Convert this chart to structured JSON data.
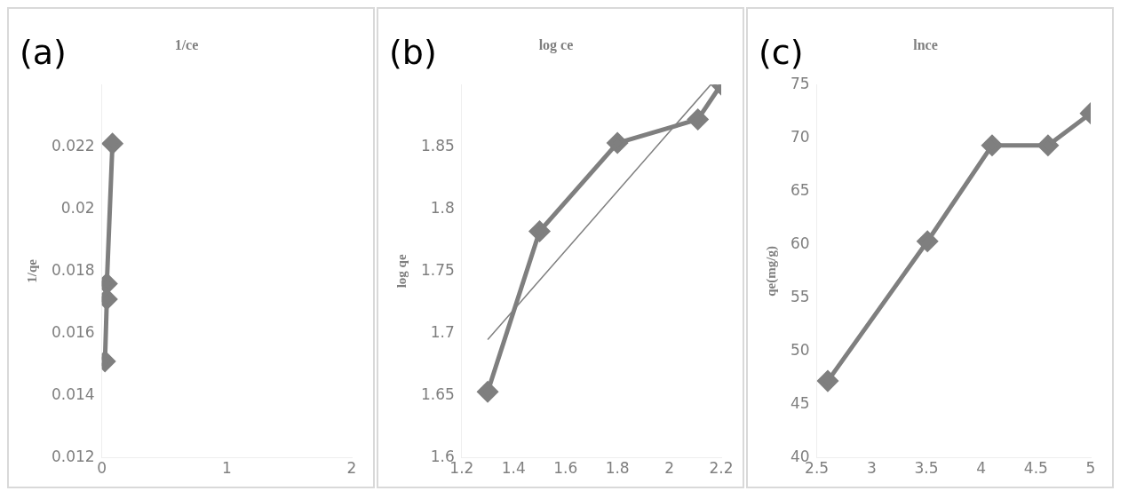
{
  "chart_data": [
    {
      "type": "line",
      "title": "1/ce",
      "ylabel": "1/qe",
      "annotations": [
        "(a)"
      ],
      "x": [
        0.025,
        0.04,
        0.04,
        0.085
      ],
      "series": [
        {
          "color": "#7f7f7f",
          "values": [
            0.0151,
            0.0171,
            0.0176,
            0.0221
          ]
        }
      ],
      "xlim": [
        0,
        2
      ],
      "xticks": [
        0,
        1,
        2
      ],
      "ylim": [
        0.012,
        0.024
      ],
      "yticks": [
        0.012,
        0.014,
        0.016,
        0.018,
        0.02,
        0.022
      ],
      "grid": false,
      "legend": false,
      "marker": "diamond"
    },
    {
      "type": "line",
      "title": "log ce",
      "ylabel": "log qe",
      "annotations": [
        "(b)"
      ],
      "series": [
        {
          "color": "#7f7f7f",
          "x": [
            1.3,
            1.5,
            1.8,
            2.11,
            2.2
          ],
          "values": [
            1.653,
            1.782,
            1.853,
            1.872,
            1.9
          ],
          "marker": "diamond"
        },
        {
          "type": "line",
          "color": "#7f7f7f",
          "x": [
            1.3,
            2.16
          ],
          "values": [
            1.695,
            1.9
          ],
          "marker": "none"
        }
      ],
      "xlim": [
        1.2,
        2.2
      ],
      "xticks": [
        {
          "value": 1.2,
          "label": "1.2"
        },
        {
          "value": 1.4,
          "label": "1.4"
        },
        {
          "value": 1.6,
          "label": "1.6"
        },
        {
          "value": 1.8,
          "label": "1.8"
        },
        2,
        {
          "value": 2.2,
          "label": "2.2"
        }
      ],
      "ylim": [
        1.6,
        1.9
      ],
      "yticks": [
        1.6,
        1.65,
        1.7,
        1.75,
        1.8,
        1.85
      ],
      "grid": false,
      "legend": false
    },
    {
      "type": "line",
      "title": "lnce",
      "ylabel": "qe(mg/g)",
      "annotations": [
        "(c)"
      ],
      "x": [
        2.6,
        3.51,
        4.1,
        4.61,
        5
      ],
      "series": [
        {
          "color": "#7f7f7f",
          "values": [
            47.2,
            60.3,
            69.3,
            69.3,
            72.3
          ]
        }
      ],
      "xlim": [
        2.5,
        5
      ],
      "xticks": [
        2.5,
        3,
        3.5,
        4,
        4.5,
        5
      ],
      "ylim": [
        40,
        75
      ],
      "yticks": [
        40,
        45,
        50,
        55,
        60,
        65,
        70,
        75
      ],
      "grid": false,
      "legend": false,
      "marker": "diamond"
    }
  ]
}
